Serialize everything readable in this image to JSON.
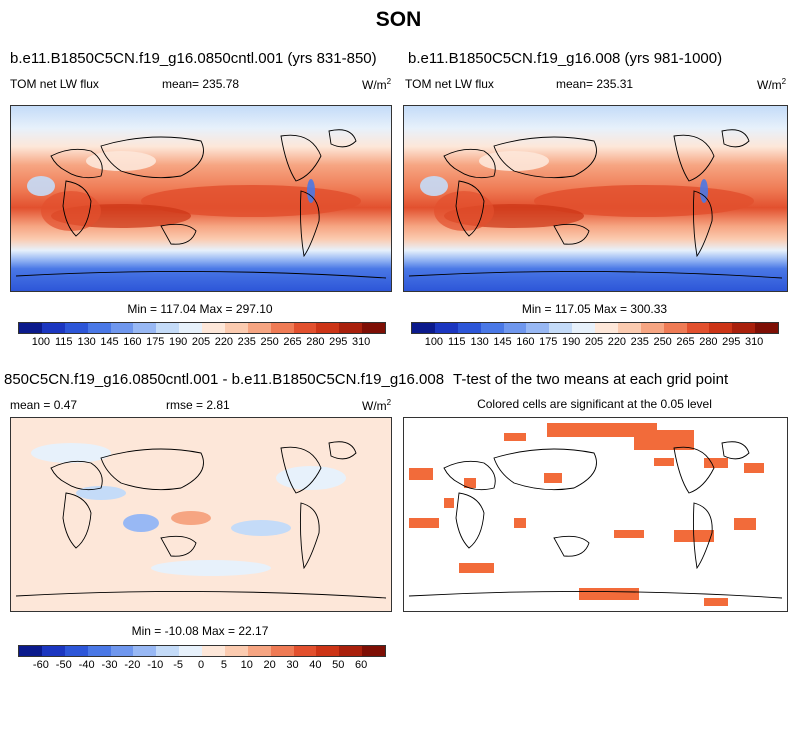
{
  "suptitle": "SON",
  "panels": [
    {
      "title": "b.e11.B1850C5CN.f19_g16.0850cntl.001 (yrs 831-850)",
      "left_label": "TOM net LW flux",
      "mean_label": "mean= 235.78",
      "units": "W/m",
      "units_sup": "2",
      "minmax": "Min = 117.04 Max = 297.10"
    },
    {
      "title": "b.e11.B1850C5CN.f19_g16.008 (yrs 981-1000)",
      "left_label": "TOM net LW flux",
      "mean_label": "mean= 235.31",
      "units": "W/m",
      "units_sup": "2",
      "minmax": "Min = 117.05 Max = 300.33"
    },
    {
      "title": "850C5CN.f19_g16.0850cntl.001 - b.e11.B1850C5CN.f19_g16.008",
      "left_label": "mean =  0.47",
      "mean_label": "rmse =  2.81",
      "units": "W/m",
      "units_sup": "2",
      "minmax": "Min = -10.08 Max =  22.17"
    },
    {
      "title": "T-test of the two means at each grid point",
      "subtitle": "Colored cells are significant at the 0.05 level"
    }
  ],
  "colorbar_abs": {
    "labels": [
      "100",
      "115",
      "130",
      "145",
      "160",
      "175",
      "190",
      "205",
      "220",
      "235",
      "250",
      "265",
      "280",
      "295",
      "310"
    ],
    "colors": [
      "#0b1a8c",
      "#1b36c0",
      "#2d56d8",
      "#4a78e6",
      "#6f97ee",
      "#98b8f4",
      "#c4dbf8",
      "#e7f1fb",
      "#fde7d9",
      "#fbcbb0",
      "#f6a582",
      "#ef7b55",
      "#e2502e",
      "#cc3416",
      "#a9200c",
      "#7e0f05"
    ]
  },
  "colorbar_diff": {
    "labels": [
      "-60",
      "-50",
      "-40",
      "-30",
      "-20",
      "-10",
      "-5",
      "0",
      "5",
      "10",
      "20",
      "30",
      "40",
      "50",
      "60"
    ],
    "colors": [
      "#0b1a8c",
      "#1b36c0",
      "#2d56d8",
      "#4a78e6",
      "#6f97ee",
      "#98b8f4",
      "#c4dbf8",
      "#e7f1fb",
      "#fde7d9",
      "#fbcbb0",
      "#f6a582",
      "#ef7b55",
      "#e2502e",
      "#cc3416",
      "#a9200c",
      "#7e0f05"
    ]
  }
}
